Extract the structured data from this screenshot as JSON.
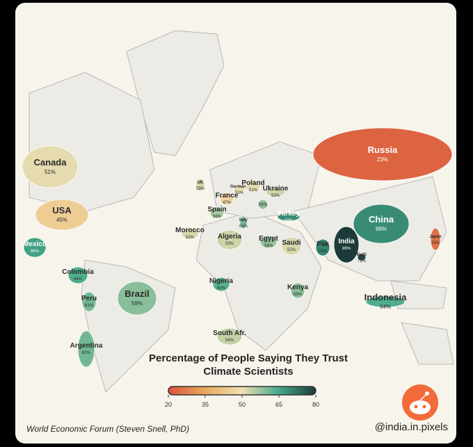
{
  "title": "Percentage of People Saying They Trust Climate Scientists",
  "source": "World Economic Forum (Steven Snell, PhD)",
  "handle": "@india.in.pixels",
  "legend": {
    "lim": [
      20,
      80
    ],
    "ticks": [
      20,
      35,
      50,
      65,
      80
    ],
    "colors": [
      "#d9533a",
      "#e9a95c",
      "#f0dfb2",
      "#44a98a",
      "#1c3b38"
    ]
  },
  "countries": [
    {
      "name": "Canada",
      "value": 51,
      "value_label": "51%"
    },
    {
      "name": "USA",
      "value": 45,
      "value_label": "45%"
    },
    {
      "name": "Mexico",
      "value": 66,
      "value_label": "66%"
    },
    {
      "name": "Colombia",
      "value": 64,
      "value_label": "64%"
    },
    {
      "name": "Peru",
      "value": 61,
      "value_label": "61%"
    },
    {
      "name": "Brazil",
      "value": 59,
      "value_label": "59%"
    },
    {
      "name": "Argentina",
      "value": 61,
      "value_label": "61%"
    },
    {
      "name": "UK",
      "value": 53,
      "value_label": "53%"
    },
    {
      "name": "France",
      "value": 47,
      "value_label": "47%"
    },
    {
      "name": "Germany",
      "value": 51,
      "value_label": "51%"
    },
    {
      "name": "Poland",
      "value": 51,
      "value_label": "51%"
    },
    {
      "name": "Ukraine",
      "value": 53,
      "value_label": "53%"
    },
    {
      "name": "Spain",
      "value": 56,
      "value_label": "56%"
    },
    {
      "name": "Italy",
      "value": 61,
      "value_label": "61%"
    },
    {
      "name": null,
      "value": 58,
      "value_label": "58%"
    },
    {
      "name": "Turkey",
      "value": 69,
      "value_label": "69%"
    },
    {
      "name": "Morocco",
      "value": 52,
      "value_label": "52%"
    },
    {
      "name": "Algeria",
      "value": 53,
      "value_label": "53%"
    },
    {
      "name": "Egypt",
      "value": 58,
      "value_label": "58%"
    },
    {
      "name": "Saudi",
      "value": 52,
      "value_label": "52%"
    },
    {
      "name": "Nigeria",
      "value": 63,
      "value_label": "63%"
    },
    {
      "name": "Kenya",
      "value": 59,
      "value_label": "59%"
    },
    {
      "name": "South Afr.",
      "value": 54,
      "value_label": "54%"
    },
    {
      "name": "Russia",
      "value": 23,
      "value_label": "23%"
    },
    {
      "name": "China",
      "value": 69,
      "value_label": "69%"
    },
    {
      "name": "India",
      "value": 86,
      "value_label": "86%"
    },
    {
      "name": "Pak",
      "value": 70,
      "value_label": "70%"
    },
    {
      "name": "BglD",
      "value": 78,
      "value_label": "78%"
    },
    {
      "name": "Japan",
      "value": 25,
      "value_label": "25%"
    },
    {
      "name": "Indonesia",
      "value": 64,
      "value_label": "64%"
    }
  ]
}
